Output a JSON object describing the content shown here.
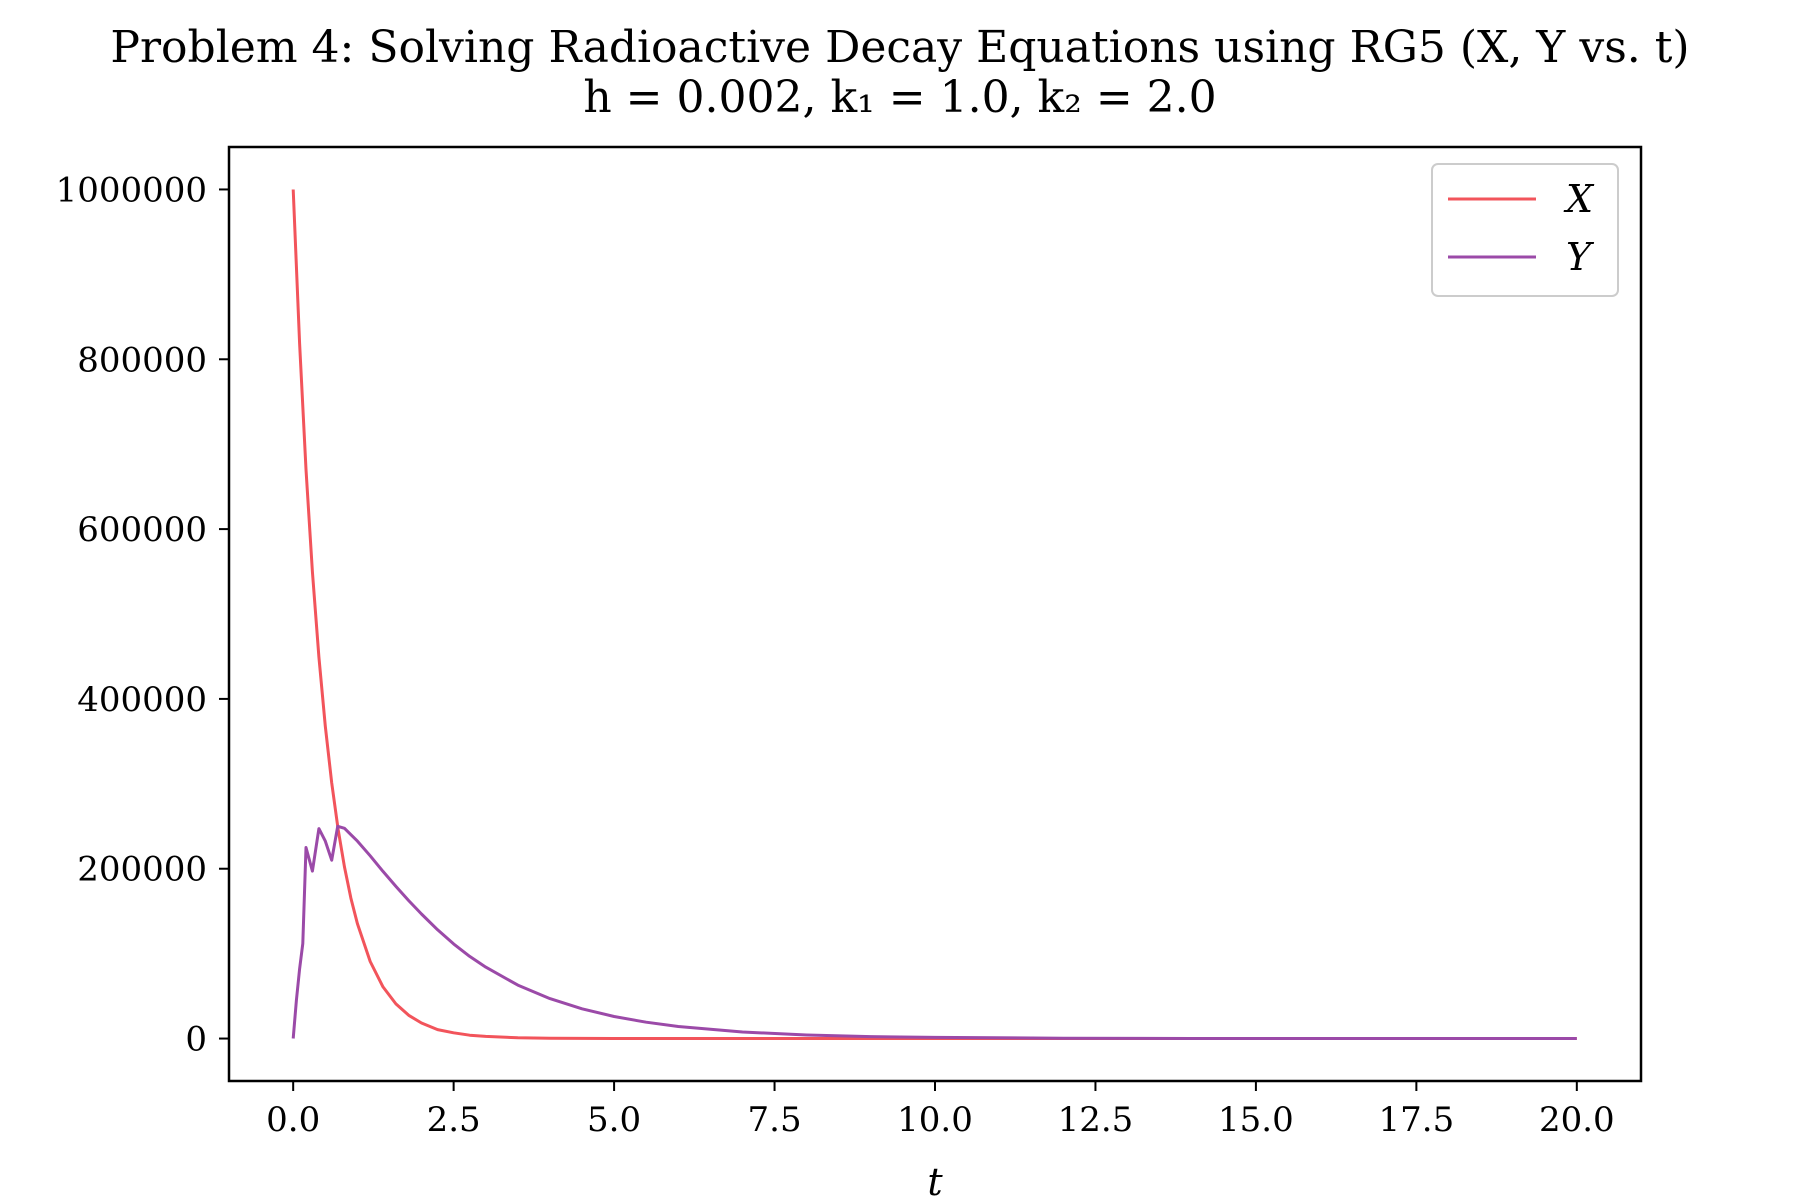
{
  "chart_data": {
    "type": "line",
    "title": "Problem 4: Solving Radioactive Decay Equations using RG5 (X, Y vs. t)",
    "subtitle": "h = 0.002, k₁ = 1.0, k₂ = 2.0",
    "xlabel": "t",
    "ylabel": "",
    "xlim": [
      -1.0,
      21.0
    ],
    "ylim": [
      -50000,
      1050000
    ],
    "x_ticks": [
      "0.0",
      "2.5",
      "5.0",
      "7.5",
      "10.0",
      "12.5",
      "15.0",
      "17.5",
      "20.0"
    ],
    "y_ticks": [
      "0",
      "200000",
      "400000",
      "600000",
      "800000",
      "1000000"
    ],
    "grid": false,
    "legend_position": "top-right",
    "series": [
      {
        "name": "X",
        "color": "#f2545b",
        "x": [
          0,
          0.1,
          0.2,
          0.3,
          0.4,
          0.5,
          0.6,
          0.7,
          0.8,
          0.9,
          1.0,
          1.2,
          1.4,
          1.6,
          1.8,
          2.0,
          2.25,
          2.5,
          2.75,
          3.0,
          3.5,
          4.0,
          4.5,
          5.0,
          5.5,
          6.0,
          7.0,
          8.0,
          9.0,
          10.0,
          12.0,
          14.0,
          16.0,
          18.0,
          20.0
        ],
        "values": [
          1000000,
          818731,
          670320,
          549812,
          449329,
          367879,
          301194,
          246597,
          201897,
          165299,
          135335,
          90718,
          60810,
          40762,
          27324,
          18316,
          10540,
          6738,
          3912,
          2479,
          906,
          335,
          123,
          45,
          17,
          6,
          1,
          0,
          0,
          0,
          0,
          0,
          0,
          0,
          0
        ]
      },
      {
        "name": "Y",
        "color": "#9b4aa8",
        "x": [
          0,
          0.05,
          0.1,
          0.15,
          0.2,
          0.3,
          0.4,
          0.5,
          0.6,
          0.693,
          0.8,
          0.9,
          1.0,
          1.2,
          1.4,
          1.6,
          1.8,
          2.0,
          2.25,
          2.5,
          2.75,
          3.0,
          3.5,
          4.0,
          4.5,
          5.0,
          5.5,
          6.0,
          7.0,
          8.0,
          9.0,
          10.0,
          12.0,
          14.0,
          16.0,
          18.0,
          20.0
        ],
        "values": [
          0,
          45125,
          82015,
          111950,
          225025,
          197230,
          247220,
          232558,
          210089,
          250000,
          247645,
          240133,
          232544,
          215200,
          196900,
          179200,
          162500,
          146700,
          128100,
          111500,
          96800,
          84100,
          63000,
          47000,
          35000,
          26000,
          19200,
          14200,
          7700,
          4200,
          2300,
          1300,
          400,
          100,
          30,
          10,
          0
        ]
      }
    ]
  }
}
